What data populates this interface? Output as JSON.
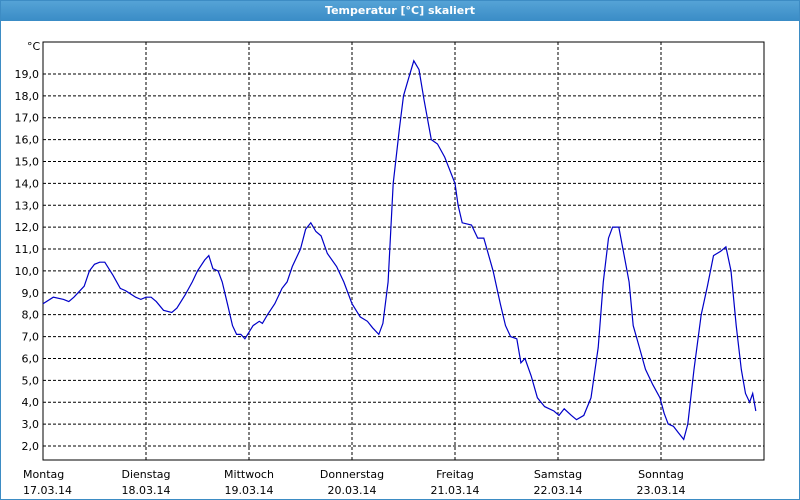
{
  "chart_data": {
    "type": "line",
    "title": "Temperatur [°C] skaliert",
    "y_label": "°C",
    "xlim": [
      0,
      7
    ],
    "ylim": [
      1.36,
      20.46
    ],
    "xticks": [
      {
        "value": 0,
        "label": "Montag",
        "date": "17.03.14"
      },
      {
        "value": 1,
        "label": "Dienstag",
        "date": "18.03.14"
      },
      {
        "value": 2,
        "label": "Mittwoch",
        "date": "19.03.14"
      },
      {
        "value": 3,
        "label": "Donnerstag",
        "date": "20.03.14"
      },
      {
        "value": 4,
        "label": "Freitag",
        "date": "21.03.14"
      },
      {
        "value": 5,
        "label": "Samstag",
        "date": "22.03.14"
      },
      {
        "value": 6,
        "label": "Sonntag",
        "date": "23.03.14"
      }
    ],
    "yticks": [
      {
        "value": 2,
        "label": "2,0"
      },
      {
        "value": 3,
        "label": "3,0"
      },
      {
        "value": 4,
        "label": "4,0"
      },
      {
        "value": 5,
        "label": "5,0"
      },
      {
        "value": 6,
        "label": "6,0"
      },
      {
        "value": 7,
        "label": "7,0"
      },
      {
        "value": 8,
        "label": "8,0"
      },
      {
        "value": 9,
        "label": "9,0"
      },
      {
        "value": 10,
        "label": "10,0"
      },
      {
        "value": 11,
        "label": "11,0"
      },
      {
        "value": 12,
        "label": "12,0"
      },
      {
        "value": 13,
        "label": "13,0"
      },
      {
        "value": 14,
        "label": "14,0"
      },
      {
        "value": 15,
        "label": "15,0"
      },
      {
        "value": 16,
        "label": "16,0"
      },
      {
        "value": 17,
        "label": "17,0"
      },
      {
        "value": 18,
        "label": "18,0"
      },
      {
        "value": 19,
        "label": "19,0"
      }
    ],
    "grid": true,
    "series": [
      {
        "color": "#0000c8",
        "x": [
          0,
          0.1,
          0.2,
          0.25,
          0.3,
          0.4,
          0.45,
          0.5,
          0.55,
          0.6,
          0.68,
          0.75,
          0.8,
          0.9,
          0.95,
          1.0,
          1.05,
          1.1,
          1.17,
          1.25,
          1.3,
          1.38,
          1.45,
          1.5,
          1.57,
          1.61,
          1.65,
          1.7,
          1.74,
          1.79,
          1.84,
          1.88,
          1.92,
          1.96,
          2.0,
          2.04,
          2.1,
          2.13,
          2.18,
          2.25,
          2.32,
          2.37,
          2.42,
          2.5,
          2.55,
          2.6,
          2.65,
          2.7,
          2.76,
          2.85,
          2.92,
          3.0,
          3.08,
          3.15,
          3.2,
          3.26,
          3.3,
          3.35,
          3.4,
          3.46,
          3.5,
          3.55,
          3.6,
          3.65,
          3.7,
          3.77,
          3.83,
          3.9,
          4.0,
          4.03,
          4.07,
          4.16,
          4.22,
          4.28,
          4.37,
          4.44,
          4.49,
          4.54,
          4.6,
          4.64,
          4.68,
          4.74,
          4.8,
          4.87,
          4.96,
          5.01,
          5.06,
          5.13,
          5.18,
          5.25,
          5.32,
          5.39,
          5.44,
          5.49,
          5.53,
          5.59,
          5.65,
          5.69,
          5.73,
          5.79,
          5.85,
          5.92,
          5.99,
          6.03,
          6.07,
          6.12,
          6.17,
          6.22,
          6.26,
          6.32,
          6.39,
          6.45,
          6.51,
          6.58,
          6.63,
          6.68,
          6.73,
          6.78,
          6.82,
          6.86,
          6.89,
          6.92
        ],
        "values": [
          8.5,
          8.8,
          8.7,
          8.6,
          8.8,
          9.3,
          10.0,
          10.3,
          10.4,
          10.4,
          9.8,
          9.2,
          9.1,
          8.8,
          8.7,
          8.8,
          8.8,
          8.6,
          8.2,
          8.1,
          8.3,
          8.9,
          9.5,
          10.0,
          10.5,
          10.7,
          10.1,
          10.0,
          9.5,
          8.5,
          7.5,
          7.1,
          7.1,
          6.9,
          7.2,
          7.5,
          7.7,
          7.6,
          8.0,
          8.5,
          9.2,
          9.5,
          10.2,
          11.0,
          11.9,
          12.2,
          11.8,
          11.6,
          10.8,
          10.2,
          9.5,
          8.5,
          7.9,
          7.7,
          7.4,
          7.1,
          7.6,
          9.5,
          14.0,
          16.5,
          18.0,
          18.8,
          19.6,
          19.2,
          17.8,
          16.0,
          15.8,
          15.2,
          14.0,
          13.0,
          12.2,
          12.1,
          11.5,
          11.5,
          10.0,
          8.5,
          7.5,
          7.0,
          6.9,
          5.8,
          6.0,
          5.2,
          4.2,
          3.8,
          3.6,
          3.4,
          3.7,
          3.4,
          3.2,
          3.4,
          4.2,
          6.5,
          9.5,
          11.5,
          12.0,
          12.0,
          10.5,
          9.5,
          7.5,
          6.5,
          5.5,
          4.8,
          4.2,
          3.5,
          3.0,
          2.9,
          2.6,
          2.3,
          3.0,
          5.5,
          8.0,
          9.3,
          10.7,
          10.9,
          11.1,
          10.0,
          7.5,
          5.5,
          4.4,
          4.0,
          4.4,
          3.6
        ]
      }
    ]
  }
}
